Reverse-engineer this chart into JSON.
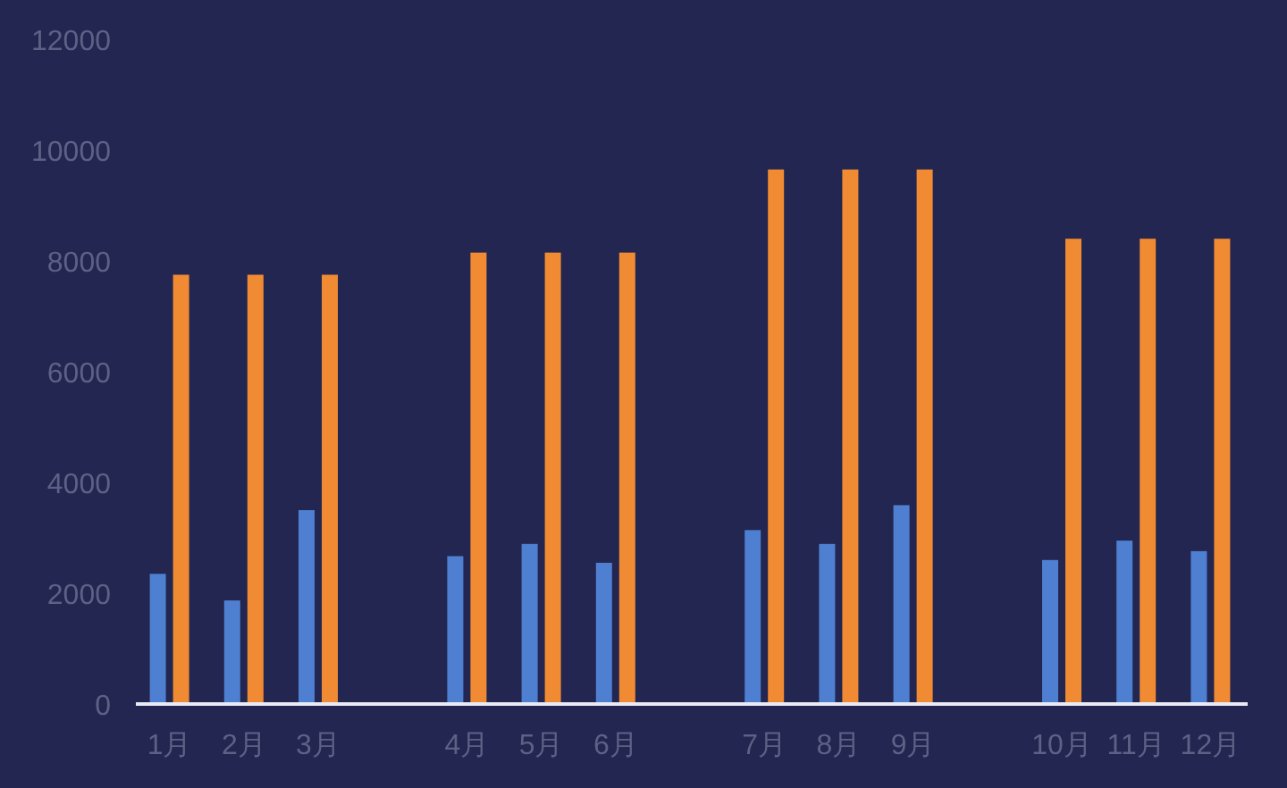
{
  "chart_data": {
    "type": "bar",
    "categories": [
      "1月",
      "2月",
      "3月",
      null,
      "4月",
      "5月",
      "6月",
      null,
      "7月",
      "8月",
      "9月",
      null,
      "10月",
      "11月",
      "12月"
    ],
    "series": [
      {
        "color": "#4f7fd0",
        "values": [
          2350,
          1870,
          3500,
          null,
          2670,
          2890,
          2550,
          null,
          3140,
          2890,
          3590,
          null,
          2600,
          2950,
          2760
        ]
      },
      {
        "color": "#f08a33",
        "values": [
          7750,
          7750,
          7750,
          null,
          8150,
          8150,
          8150,
          null,
          9650,
          9650,
          9650,
          null,
          8400,
          8400,
          8400
        ]
      }
    ],
    "ylim": [
      0,
      12000
    ],
    "yticks": [
      0,
      2000,
      4000,
      6000,
      8000,
      10000,
      12000
    ]
  }
}
